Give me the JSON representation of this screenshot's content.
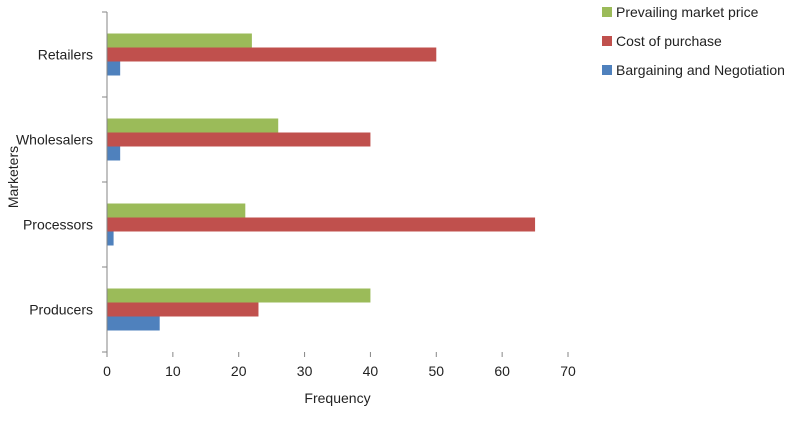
{
  "chart_data": {
    "type": "bar",
    "orientation": "horizontal",
    "categories": [
      "Producers",
      "Processors",
      "Wholesalers",
      "Retailers"
    ],
    "series": [
      {
        "name": "Bargaining and Negotiation",
        "color": "#4f81bd",
        "values": [
          8,
          1,
          2,
          2
        ]
      },
      {
        "name": "Cost of purchase",
        "color": "#c0504d",
        "values": [
          23,
          65,
          40,
          50
        ]
      },
      {
        "name": "Prevailing market price",
        "color": "#9bbb59",
        "values": [
          40,
          21,
          26,
          22
        ]
      }
    ],
    "xlabel": "Frequency",
    "ylabel": "Marketers",
    "xlim": [
      0,
      70
    ],
    "xticks": [
      0,
      10,
      20,
      30,
      40,
      50,
      60,
      70
    ],
    "grid": false,
    "legend_position": "top-right",
    "legend_order": [
      "Prevailing market price",
      "Cost of purchase",
      "Bargaining and Negotiation"
    ]
  }
}
